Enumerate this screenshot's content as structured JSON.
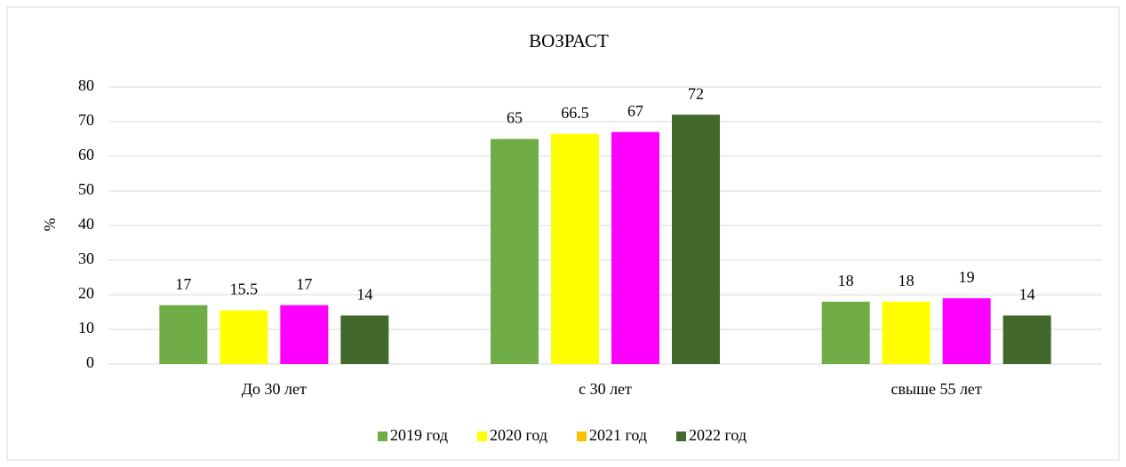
{
  "chart_data": {
    "type": "bar",
    "title": "ВОЗРАСТ",
    "y_label": "%",
    "categories": [
      "До 30 лет",
      "с 30 лет",
      "свыше 55 лет"
    ],
    "series": [
      {
        "name": "2019 год",
        "color": "#70ad47",
        "values": [
          17,
          65,
          18
        ]
      },
      {
        "name": "2020 год",
        "color": "#ffff00",
        "values": [
          15.5,
          66.5,
          18
        ]
      },
      {
        "name": "2021 год",
        "color": "#ff00ff",
        "legend_color": "#ffc000",
        "values": [
          17,
          67,
          19
        ]
      },
      {
        "name": "2022 год",
        "color": "#43682b",
        "values": [
          14,
          72,
          14
        ]
      }
    ],
    "ylim": [
      0,
      80
    ],
    "yticks": [
      0,
      10,
      20,
      30,
      40,
      50,
      60,
      70,
      80
    ],
    "grid": true,
    "legend": "bottom"
  }
}
